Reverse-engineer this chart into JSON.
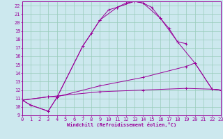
{
  "xlabel": "Windchill (Refroidissement éolien,°C)",
  "bg_color": "#cce8ee",
  "grid_color": "#99ccbb",
  "line_color": "#990099",
  "xlim": [
    0,
    23
  ],
  "ylim": [
    9,
    22.5
  ],
  "xticks": [
    0,
    1,
    2,
    3,
    4,
    5,
    6,
    7,
    8,
    9,
    10,
    11,
    12,
    13,
    14,
    15,
    16,
    17,
    18,
    19,
    20,
    21,
    22,
    23
  ],
  "yticks": [
    9,
    10,
    11,
    12,
    13,
    14,
    15,
    16,
    17,
    18,
    19,
    20,
    21,
    22
  ],
  "series": [
    {
      "x": [
        0,
        1,
        3,
        4,
        7,
        8,
        9,
        10,
        11,
        12,
        13,
        14,
        15,
        16,
        17,
        18,
        19
      ],
      "y": [
        10.8,
        10.2,
        9.5,
        11.1,
        17.2,
        18.7,
        20.3,
        21.5,
        21.8,
        22.3,
        22.5,
        22.3,
        21.8,
        20.5,
        19.3,
        17.7,
        17.5
      ]
    },
    {
      "x": [
        0,
        1,
        3,
        4,
        7,
        9,
        11,
        13,
        14,
        16,
        18,
        20,
        22,
        23
      ],
      "y": [
        10.8,
        10.2,
        9.5,
        11.1,
        17.2,
        20.3,
        21.8,
        22.5,
        22.3,
        20.5,
        17.7,
        15.2,
        12.1,
        12.0
      ]
    },
    {
      "x": [
        0,
        3,
        4,
        9,
        14,
        19,
        20,
        22,
        23
      ],
      "y": [
        10.8,
        11.2,
        11.2,
        12.5,
        13.5,
        14.8,
        15.2,
        12.1,
        12.0
      ]
    },
    {
      "x": [
        0,
        3,
        9,
        14,
        19,
        22,
        23
      ],
      "y": [
        10.8,
        11.2,
        11.8,
        12.0,
        12.2,
        12.1,
        12.0
      ]
    }
  ]
}
